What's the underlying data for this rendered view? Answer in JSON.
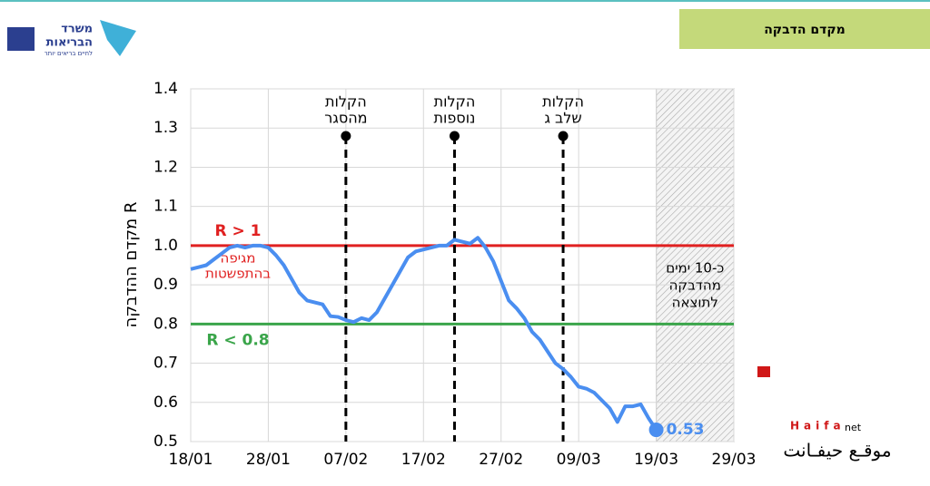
{
  "header": {
    "title": "מקדם הדבקה",
    "logo": [
      "משרד",
      "הבריאות",
      "לחיים בריאים יותר"
    ]
  },
  "watermark": {
    "brand": "Haifa",
    "suffix": "net",
    "tagline": "موقـع حيفـانت"
  },
  "chart_data": {
    "type": "line",
    "ylabel": "מקדם ההדבקה R",
    "categories": [
      "18/01",
      null,
      null,
      null,
      null,
      null,
      null,
      null,
      null,
      null,
      "28/01",
      null,
      null,
      null,
      null,
      null,
      null,
      null,
      null,
      null,
      "07/02",
      null,
      null,
      null,
      null,
      null,
      null,
      null,
      null,
      null,
      "17/02",
      null,
      null,
      null,
      null,
      null,
      null,
      null,
      null,
      null,
      "27/02",
      null,
      null,
      null,
      null,
      null,
      null,
      null,
      null,
      null,
      "09/03",
      null,
      null,
      null,
      null,
      null,
      null,
      null,
      null,
      null,
      "19/03",
      null,
      null,
      null,
      null,
      null,
      null,
      null,
      null,
      null,
      "29/03"
    ],
    "series": [
      {
        "name": "R",
        "color": "#4a8ef0",
        "values": [
          0.94,
          0.945,
          0.95,
          0.965,
          0.98,
          0.995,
          1.0,
          0.995,
          1.0,
          1.0,
          0.995,
          0.975,
          0.95,
          0.915,
          0.88,
          0.86,
          0.855,
          0.85,
          0.82,
          0.818,
          0.81,
          0.805,
          0.815,
          0.81,
          0.83,
          0.865,
          0.9,
          0.935,
          0.97,
          0.985,
          0.99,
          0.995,
          1.0,
          1.0,
          1.015,
          1.01,
          1.005,
          1.02,
          0.995,
          0.96,
          0.91,
          0.86,
          0.84,
          0.815,
          0.78,
          0.76,
          0.73,
          0.7,
          0.685,
          0.665,
          0.64,
          0.635,
          0.625,
          0.605,
          0.585,
          0.55,
          0.59,
          0.59,
          0.595,
          0.56,
          0.53,
          null,
          null,
          null,
          null,
          null,
          null,
          null,
          null,
          null,
          null
        ]
      }
    ],
    "ylim": [
      0.5,
      1.4
    ],
    "yticks": [
      {
        "value": 0.5,
        "label": "0.5"
      },
      {
        "value": 0.6,
        "label": "0.6"
      },
      {
        "value": 0.7,
        "label": "0.7"
      },
      {
        "value": 0.8,
        "label": "0.8"
      },
      {
        "value": 0.9,
        "label": "0.9"
      },
      {
        "value": 1.0,
        "label": "1.0"
      },
      {
        "value": 1.1,
        "label": "1.1"
      },
      {
        "value": 1.2,
        "label": "1.2"
      },
      {
        "value": 1.3,
        "label": "1.3"
      },
      {
        "value": 1.4,
        "label": "1.4"
      }
    ],
    "grid": true,
    "reference_lines": [
      {
        "value": 1.0,
        "color": "#e02020",
        "label": "R > 1",
        "note": [
          "מגיפה",
          "בהתפשטות"
        ]
      },
      {
        "value": 0.8,
        "color": "#3aa54a",
        "label": "R < 0.8"
      }
    ],
    "events": [
      {
        "index": 20,
        "text": [
          "הקלות",
          "מהסגר"
        ]
      },
      {
        "index": 34,
        "text": [
          "הקלות",
          "נוספות"
        ]
      },
      {
        "index": 48,
        "text": [
          "הקלות",
          "שלב ג"
        ]
      }
    ],
    "shaded": {
      "from": 60,
      "to": 70,
      "text": [
        "כ-10 ימים",
        "מהדבקה",
        "לתוצאה"
      ]
    }
  }
}
